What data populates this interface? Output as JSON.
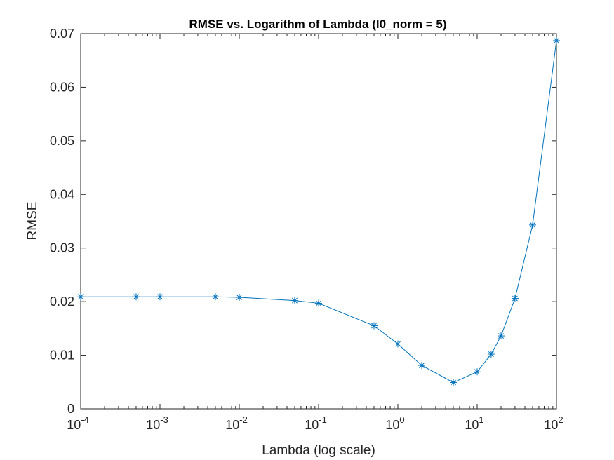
{
  "chart_data": {
    "type": "line",
    "title": "RMSE vs. Logarithm of Lambda (l0_norm = 5)",
    "xlabel": "Lambda (log scale)",
    "ylabel": "RMSE",
    "xscale": "log",
    "xlim": [
      0.0001,
      100
    ],
    "ylim": [
      0,
      0.07
    ],
    "grid": false,
    "marker": "asterisk",
    "line_color": "#0072BD",
    "x_ticks": [
      {
        "base": "10",
        "exp": "-4"
      },
      {
        "base": "10",
        "exp": "-3"
      },
      {
        "base": "10",
        "exp": "-2"
      },
      {
        "base": "10",
        "exp": "-1"
      },
      {
        "base": "10",
        "exp": "0"
      },
      {
        "base": "10",
        "exp": "1"
      },
      {
        "base": "10",
        "exp": "2"
      }
    ],
    "y_ticks": [
      "0",
      "0.01",
      "0.02",
      "0.03",
      "0.04",
      "0.05",
      "0.06",
      "0.07"
    ],
    "series": [
      {
        "x": [
          0.0001,
          0.0005,
          0.001,
          0.005,
          0.01,
          0.05,
          0.1,
          0.5,
          1,
          2,
          5,
          10,
          15,
          20,
          30,
          50,
          100
        ],
        "y": [
          0.0209,
          0.0209,
          0.0209,
          0.0209,
          0.0208,
          0.0202,
          0.0197,
          0.0155,
          0.0121,
          0.0081,
          0.0049,
          0.0069,
          0.0102,
          0.0136,
          0.0206,
          0.0343,
          0.0687
        ]
      }
    ]
  }
}
